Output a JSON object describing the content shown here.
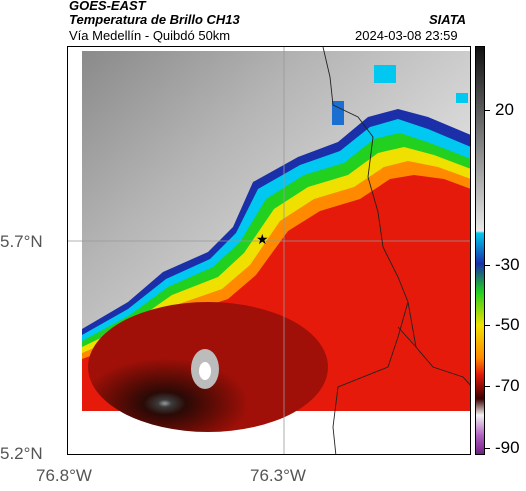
{
  "header": {
    "satellite": "GOES-EAST",
    "product": "Temperatura de Brillo CH13",
    "org": "SIATA",
    "region": "Vía Medellín - Quibdó 50km",
    "datetime": "2024-03-08 23:59"
  },
  "axes": {
    "lat_labels": [
      "5.7°N",
      "5.2°N"
    ],
    "lon_labels": [
      "76.8°W",
      "76.3°W"
    ]
  },
  "colorbar": {
    "ticks": [
      "20",
      "-30",
      "-50",
      "-70",
      "-90"
    ]
  },
  "map": {
    "marker": "star-icon",
    "palette": {
      "cold": "#ff0000",
      "warm_gray": "#c9c9c9",
      "cyan": "#00d5ff",
      "blue": "#1030a0"
    }
  }
}
